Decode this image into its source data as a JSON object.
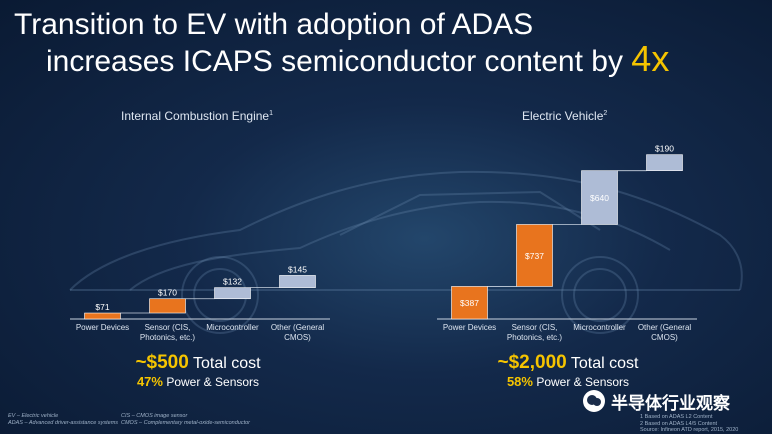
{
  "slide": {
    "title_line1": "Transition to EV with adoption of ADAS",
    "title_line2": "increases ICAPS semiconductor content by",
    "title_emphasis": "4x"
  },
  "chart_data": [
    {
      "type": "bar",
      "subtype": "waterfall",
      "title": "Internal Combustion Engine",
      "title_sup": "1",
      "categories": [
        "Power Devices",
        "Sensor (CIS, Photonics, etc.)",
        "Microcontroller",
        "Other (General CMOS)"
      ],
      "values": [
        71,
        170,
        132,
        145
      ],
      "labels": [
        "$71",
        "$170",
        "$132",
        "$145"
      ],
      "colors": [
        "#e8741e",
        "#e8741e",
        "#aebcd6",
        "#aebcd6"
      ],
      "ylim": [
        0,
        2200
      ],
      "summary_total": "~$500",
      "summary_total_suffix": "Total cost",
      "summary_pct": "47%",
      "summary_pct_suffix": "Power & Sensors"
    },
    {
      "type": "bar",
      "subtype": "waterfall",
      "title": "Electric Vehicle",
      "title_sup": "2",
      "categories": [
        "Power Devices",
        "Sensor (CIS, Photonics, etc.)",
        "Microcontroller",
        "Other (General CMOS)"
      ],
      "values": [
        387,
        737,
        640,
        190
      ],
      "labels": [
        "$387",
        "$737",
        "$640",
        "$190"
      ],
      "colors": [
        "#e8741e",
        "#e8741e",
        "#aebcd6",
        "#aebcd6"
      ],
      "ylim": [
        0,
        2200
      ],
      "summary_total": "~$2,000",
      "summary_total_suffix": "Total cost",
      "summary_pct": "58%",
      "summary_pct_suffix": "Power & Sensors"
    }
  ],
  "footnotes": {
    "left1": "EV – Electric vehicle",
    "left2": "ADAS – Advanced driver-assistance systems",
    "mid1": "CIS – CMOS image sensor",
    "mid2": "CMOS – Complementary metal-oxide-semiconductor",
    "right1": "1 Based on ADAS L2 Content",
    "right2": "2 Based on ADAS L4/5 Content",
    "right3": "Source: Infineon ATD report, 2015, 2020"
  },
  "watermark": {
    "text": "半导体行业观察",
    "icon": "wechat-icon"
  }
}
